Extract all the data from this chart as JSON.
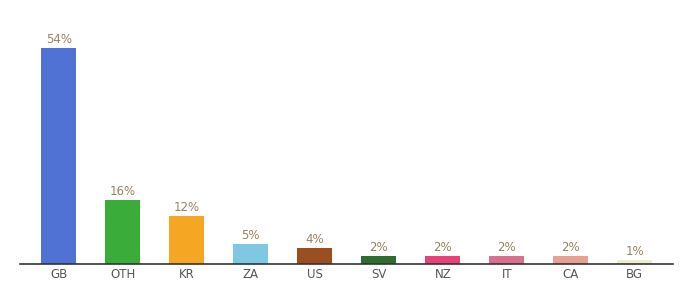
{
  "categories": [
    "GB",
    "OTH",
    "KR",
    "ZA",
    "US",
    "SV",
    "NZ",
    "IT",
    "CA",
    "BG"
  ],
  "values": [
    54,
    16,
    12,
    5,
    4,
    2,
    2,
    2,
    2,
    1
  ],
  "bar_colors": [
    "#4f72d4",
    "#3aac3a",
    "#f5a623",
    "#7ec8e3",
    "#9b4e1e",
    "#2d6e2d",
    "#e8417a",
    "#d97090",
    "#e8a090",
    "#f0ecd0"
  ],
  "labels": [
    "54%",
    "16%",
    "12%",
    "5%",
    "4%",
    "2%",
    "2%",
    "2%",
    "2%",
    "1%"
  ],
  "ylim": [
    0,
    60
  ],
  "background_color": "#ffffff",
  "label_color": "#9b8060",
  "label_fontsize": 8.5,
  "tick_fontsize": 8.5,
  "bar_width": 0.55
}
